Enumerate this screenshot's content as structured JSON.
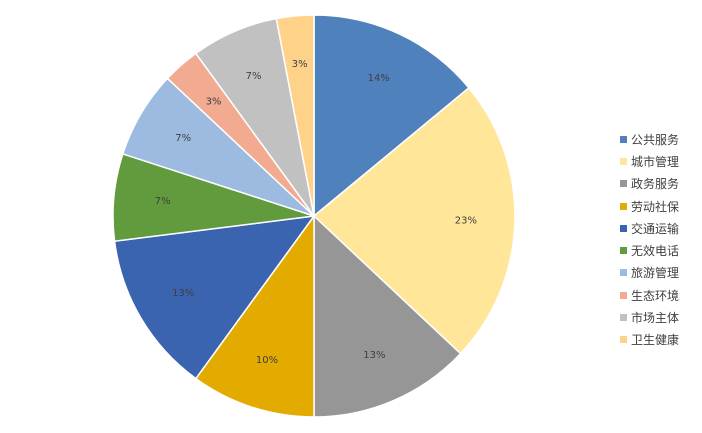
{
  "chart_data": {
    "type": "pie",
    "title": "",
    "legend_position": "right",
    "start_angle": "12 o'clock, clockwise",
    "slices": [
      {
        "label": "公共服务",
        "value": 14,
        "display": "14%",
        "color": "#4F81BD"
      },
      {
        "label": "城市管理",
        "value": 23,
        "display": "23%",
        "color": "#FFE699"
      },
      {
        "label": "政务服务",
        "value": 13,
        "display": "13%",
        "color": "#969696"
      },
      {
        "label": "劳动社保",
        "value": 10,
        "display": "10%",
        "color": "#E3AA00"
      },
      {
        "label": "交通运输",
        "value": 13,
        "display": "13%",
        "color": "#3A64B0"
      },
      {
        "label": "无效电话",
        "value": 7,
        "display": "7%",
        "color": "#619B3E"
      },
      {
        "label": "旅游管理",
        "value": 7,
        "display": "7%",
        "color": "#9DBAE0"
      },
      {
        "label": "生态环境",
        "value": 3,
        "display": "3%",
        "color": "#F2AA91"
      },
      {
        "label": "市场主体",
        "value": 7,
        "display": "7%",
        "color": "#C1C1C1"
      },
      {
        "label": "卫生健康",
        "value": 3,
        "display": "3%",
        "color": "#FFD28A"
      }
    ]
  }
}
